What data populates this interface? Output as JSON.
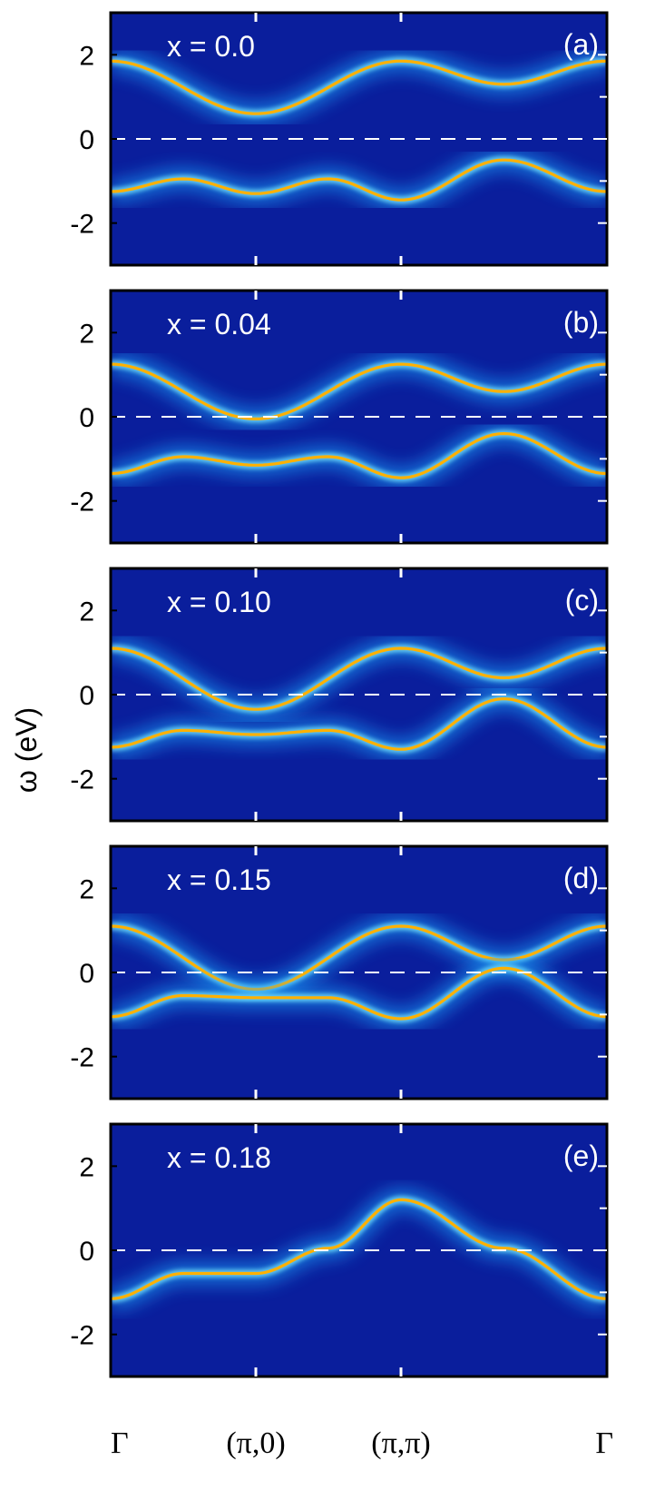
{
  "chart_data": {
    "type": "line",
    "ylabel": "ω (eV)",
    "ylim": [
      -3,
      3
    ],
    "yticks": [
      -2,
      0,
      2
    ],
    "x_ticks": [
      "Γ",
      "(π,0)",
      "(π,π)",
      "Γ"
    ],
    "colors": {
      "background": "#0a1e9c",
      "band": "#ffb000",
      "zero_line": "#ffffff"
    },
    "panels": [
      {
        "tag": "(a)",
        "label": "x = 0.0",
        "upper_band": [
          [
            0,
            1.85
          ],
          [
            0.5,
            0.6
          ],
          [
            1,
            1.85
          ],
          [
            1.5,
            1.3
          ],
          [
            2,
            1.85
          ]
        ],
        "lower_band": [
          [
            0,
            -1.25
          ],
          [
            0.25,
            -0.95
          ],
          [
            0.5,
            -1.3
          ],
          [
            0.75,
            -0.95
          ],
          [
            1,
            -1.45
          ],
          [
            1.5,
            -0.5
          ],
          [
            2,
            -1.25
          ]
        ]
      },
      {
        "tag": "(b)",
        "label": "x = 0.04",
        "upper_band": [
          [
            0,
            1.25
          ],
          [
            0.5,
            -0.05
          ],
          [
            1,
            1.25
          ],
          [
            1.5,
            0.6
          ],
          [
            2,
            1.25
          ]
        ],
        "lower_band": [
          [
            0,
            -1.35
          ],
          [
            0.25,
            -0.95
          ],
          [
            0.5,
            -1.15
          ],
          [
            0.75,
            -0.95
          ],
          [
            1,
            -1.45
          ],
          [
            1.5,
            -0.4
          ],
          [
            2,
            -1.35
          ]
        ]
      },
      {
        "tag": "(c)",
        "label": "x = 0.10",
        "upper_band": [
          [
            0,
            1.1
          ],
          [
            0.5,
            -0.35
          ],
          [
            1,
            1.1
          ],
          [
            1.5,
            0.4
          ],
          [
            2,
            1.1
          ]
        ],
        "lower_band": [
          [
            0,
            -1.25
          ],
          [
            0.25,
            -0.85
          ],
          [
            0.5,
            -0.95
          ],
          [
            0.75,
            -0.85
          ],
          [
            1,
            -1.3
          ],
          [
            1.5,
            -0.1
          ],
          [
            2,
            -1.25
          ]
        ]
      },
      {
        "tag": "(d)",
        "label": "x = 0.15",
        "upper_band": [
          [
            0,
            1.1
          ],
          [
            0.5,
            -0.4
          ],
          [
            1,
            1.1
          ],
          [
            1.5,
            0.3
          ],
          [
            2,
            1.1
          ]
        ],
        "lower_band": [
          [
            0,
            -1.05
          ],
          [
            0.25,
            -0.55
          ],
          [
            0.5,
            -0.6
          ],
          [
            0.75,
            -0.6
          ],
          [
            1,
            -1.1
          ],
          [
            1.5,
            0.1
          ],
          [
            2,
            -1.05
          ]
        ]
      },
      {
        "tag": "(e)",
        "label": "x = 0.18",
        "upper_band": [
          [
            0,
            -1.15
          ],
          [
            0.25,
            -0.55
          ],
          [
            0.5,
            -0.55
          ],
          [
            0.75,
            0.05
          ],
          [
            1,
            1.2
          ],
          [
            1.5,
            0.05
          ],
          [
            2,
            -1.15
          ]
        ],
        "lower_band": []
      }
    ]
  }
}
